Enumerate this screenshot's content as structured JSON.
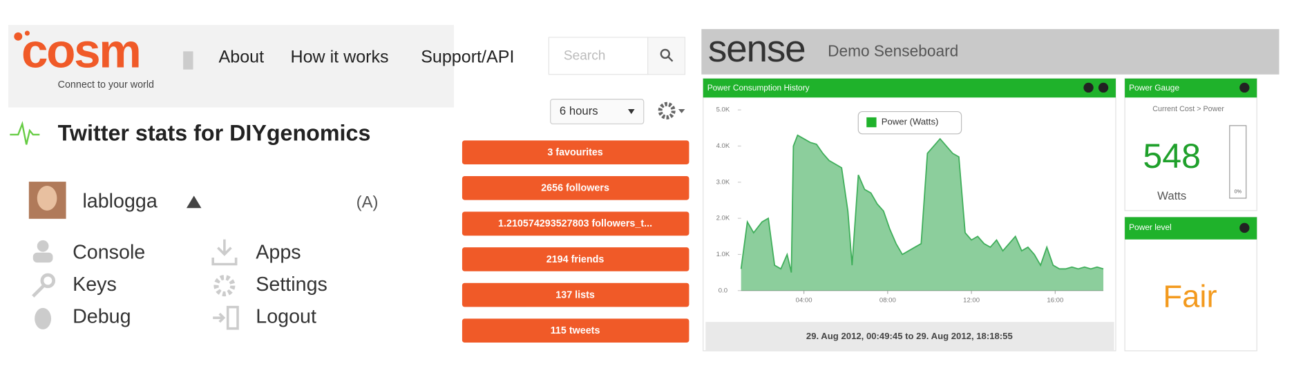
{
  "cosm": {
    "logo": "cosm",
    "tagline": "Connect to your world",
    "nav": [
      "About",
      "How it works",
      "Support/API"
    ],
    "search_placeholder": "Search"
  },
  "page": {
    "title": "Twitter stats for DIYgenomics",
    "user": "lablogga",
    "menu": [
      "Console",
      "Keys",
      "Debug",
      "Apps",
      "Settings",
      "Logout"
    ],
    "time_range": "6 hours",
    "stats": [
      "3 favourites",
      "2656 followers",
      "1.210574293527803 followers_t...",
      "2194 friends",
      "137 lists",
      "115 tweets"
    ]
  },
  "sense": {
    "logo": "sense",
    "title": "Demo Senseboard",
    "power_chart": {
      "type": "area",
      "title": "Power Consumption History",
      "x": [
        1.0,
        1.3,
        1.6,
        2.0,
        2.3,
        2.6,
        2.9,
        3.2,
        3.4,
        3.5,
        3.7,
        4.0,
        4.3,
        4.6,
        4.9,
        5.2,
        5.5,
        5.8,
        6.1,
        6.3,
        6.6,
        6.9,
        7.2,
        7.5,
        7.8,
        8.1,
        8.4,
        8.7,
        9.0,
        9.3,
        9.6,
        9.9,
        10.2,
        10.5,
        10.8,
        11.1,
        11.4,
        11.7,
        12.0,
        12.3,
        12.6,
        12.9,
        13.2,
        13.5,
        13.8,
        14.1,
        14.4,
        14.7,
        15.0,
        15.3,
        15.6,
        15.9,
        16.2,
        16.5,
        16.8,
        17.1,
        17.4,
        17.7,
        18.0,
        18.3
      ],
      "series": [
        {
          "name": "Power (Watts)",
          "color": "#3fae5a",
          "values": [
            600,
            1900,
            1600,
            1900,
            2000,
            700,
            600,
            1000,
            500,
            4000,
            4300,
            4200,
            4100,
            4050,
            3800,
            3600,
            3500,
            3400,
            2200,
            700,
            3200,
            2800,
            2700,
            2400,
            2200,
            1700,
            1300,
            1000,
            1100,
            1200,
            1300,
            3800,
            4000,
            4200,
            4000,
            3800,
            3700,
            1600,
            1400,
            1500,
            1300,
            1200,
            1400,
            1100,
            1300,
            1500,
            1100,
            1200,
            1000,
            700,
            1200,
            700,
            600,
            600,
            650,
            600,
            650,
            600,
            650,
            600
          ]
        }
      ],
      "xlim": [
        1,
        18.3
      ],
      "xticks": [
        {
          "value": 4,
          "label": "04:00"
        },
        {
          "value": 8,
          "label": "08:00"
        },
        {
          "value": 12,
          "label": "12:00"
        },
        {
          "value": 16,
          "label": "16:00"
        }
      ],
      "ylim": [
        0,
        5000
      ],
      "yticks": [
        {
          "value": 0,
          "label": "0.0"
        },
        {
          "value": 1000,
          "label": "1.0K"
        },
        {
          "value": 2000,
          "label": "2.0K"
        },
        {
          "value": 3000,
          "label": "3.0K"
        },
        {
          "value": 4000,
          "label": "4.0K"
        },
        {
          "value": 5000,
          "label": "5.0K"
        }
      ],
      "range_label": "29. Aug 2012, 00:49:45 to 29. Aug 2012, 18:18:55"
    },
    "gauge": {
      "title": "Power Gauge",
      "subtitle": "Current Cost > Power",
      "value": 548,
      "unit": "Watts",
      "bar_label": "0%"
    },
    "level": {
      "title": "Power level",
      "value": "Fair"
    }
  }
}
